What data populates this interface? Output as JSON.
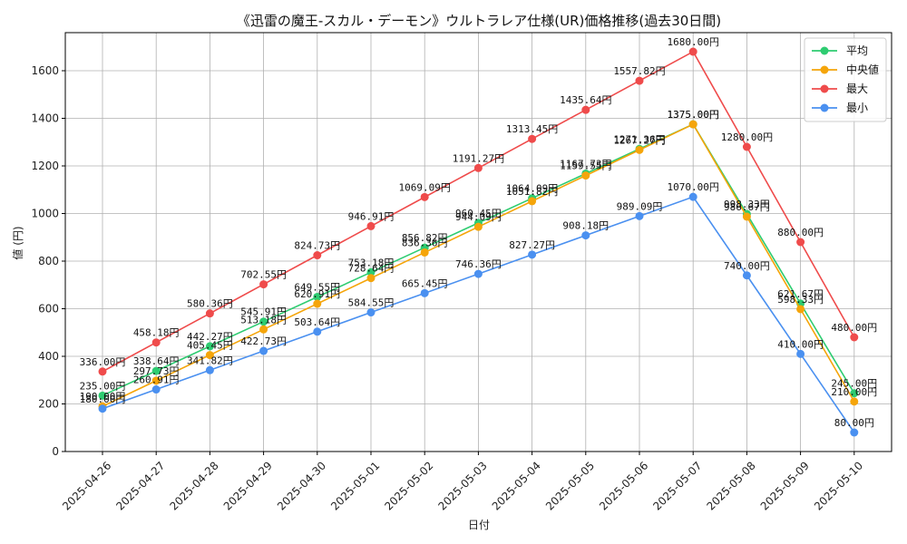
{
  "chart_data": {
    "type": "line",
    "title": "《迅雷の魔王-スカル・デーモン》ウルトラレア仕様(UR)価格推移(過去30日間)",
    "xlabel": "日付",
    "ylabel": "値 (円)",
    "ylim": [
      0,
      1760
    ],
    "yticks": [
      0,
      200,
      400,
      600,
      800,
      1000,
      1200,
      1400,
      1600
    ],
    "grid": true,
    "legend_position": "top-right",
    "value_suffix": "円",
    "categories": [
      "2025-04-26",
      "2025-04-27",
      "2025-04-28",
      "2025-04-29",
      "2025-04-30",
      "2025-05-01",
      "2025-05-02",
      "2025-05-03",
      "2025-05-04",
      "2025-05-05",
      "2025-05-06",
      "2025-05-07",
      "2025-05-08",
      "2025-05-09",
      "2025-05-10"
    ],
    "series": [
      {
        "name": "平均",
        "color": "#2ecc71",
        "values": [
          235.0,
          338.64,
          442.27,
          545.91,
          649.55,
          753.18,
          856.82,
          960.45,
          1064.09,
          1167.73,
          1271.36,
          1375.0,
          998.33,
          621.67,
          245.0
        ]
      },
      {
        "name": "中央値",
        "color": "#f5a50a",
        "values": [
          190.0,
          297.73,
          405.45,
          513.18,
          620.91,
          728.64,
          836.36,
          944.09,
          1051.82,
          1159.55,
          1267.27,
          1375.0,
          986.67,
          598.33,
          210.0
        ]
      },
      {
        "name": "最大",
        "color": "#ef4b4b",
        "values": [
          336.0,
          458.18,
          580.36,
          702.55,
          824.73,
          946.91,
          1069.09,
          1191.27,
          1313.45,
          1435.64,
          1557.82,
          1680.0,
          1280.0,
          880.0,
          480.0
        ]
      },
      {
        "name": "最小",
        "color": "#4a90f0",
        "values": [
          180.0,
          260.91,
          341.82,
          422.73,
          503.64,
          584.55,
          665.45,
          746.36,
          827.27,
          908.18,
          989.09,
          1070.0,
          740.0,
          410.0,
          80.0
        ]
      }
    ]
  }
}
